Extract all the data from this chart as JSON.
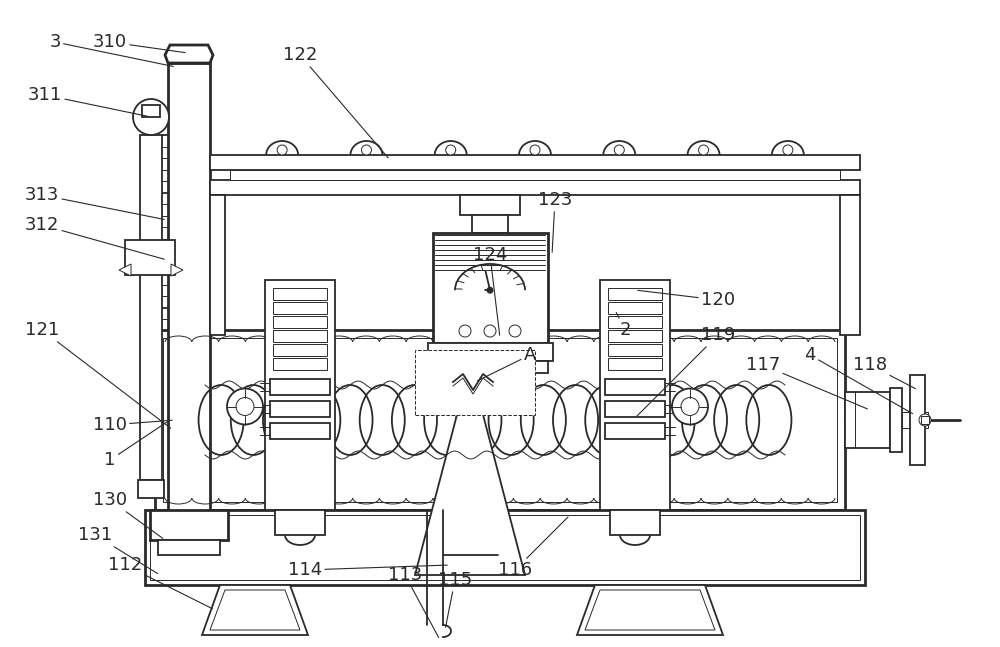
{
  "bg_color": "#ffffff",
  "line_color": "#2a2a2a",
  "label_color": "#000000",
  "figsize": [
    10.0,
    6.47
  ],
  "dpi": 100,
  "lw_main": 1.3,
  "lw_thick": 2.0,
  "lw_thin": 0.7
}
